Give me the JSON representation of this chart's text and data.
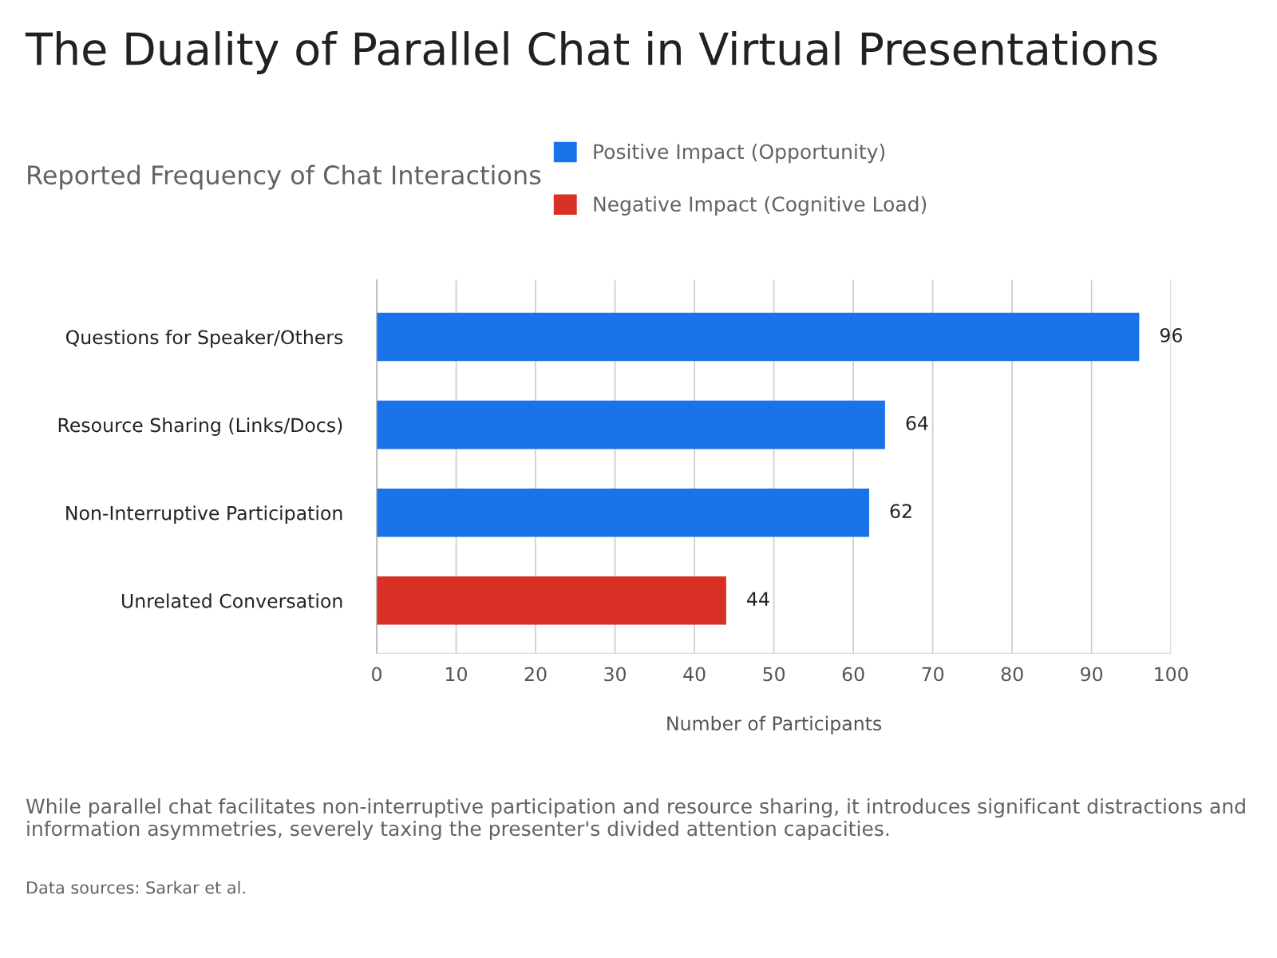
{
  "chart_data": {
    "type": "bar",
    "orientation": "horizontal",
    "title": "The Duality of Parallel Chat in Virtual Presentations",
    "subtitle": "Reported Frequency of Chat Interactions",
    "xlabel": "Number of Participants",
    "categories": [
      "Questions for Speaker/Others",
      "Resource Sharing (Links/Docs)",
      "Non-Interruptive Participation",
      "Unrelated Conversation"
    ],
    "series": [
      {
        "name": "Positive Impact (Opportunity)",
        "color": "#1a73e8",
        "values": [
          96,
          64,
          62,
          null
        ]
      },
      {
        "name": "Negative Impact (Cognitive Load)",
        "color": "#d93025",
        "values": [
          null,
          null,
          null,
          44
        ]
      }
    ],
    "xlim": [
      0,
      100
    ],
    "xticks": [
      0,
      10,
      20,
      30,
      40,
      50,
      60,
      70,
      80,
      90,
      100
    ],
    "grid": "x",
    "legend": "top",
    "data_labels": true,
    "annotations": [
      "While parallel chat facilitates non-interruptive participation and resource sharing, it introduces significant distractions and information asymmetries, severely taxing the presenter's divided attention capacities.",
      "Data sources: Sarkar et al."
    ]
  }
}
